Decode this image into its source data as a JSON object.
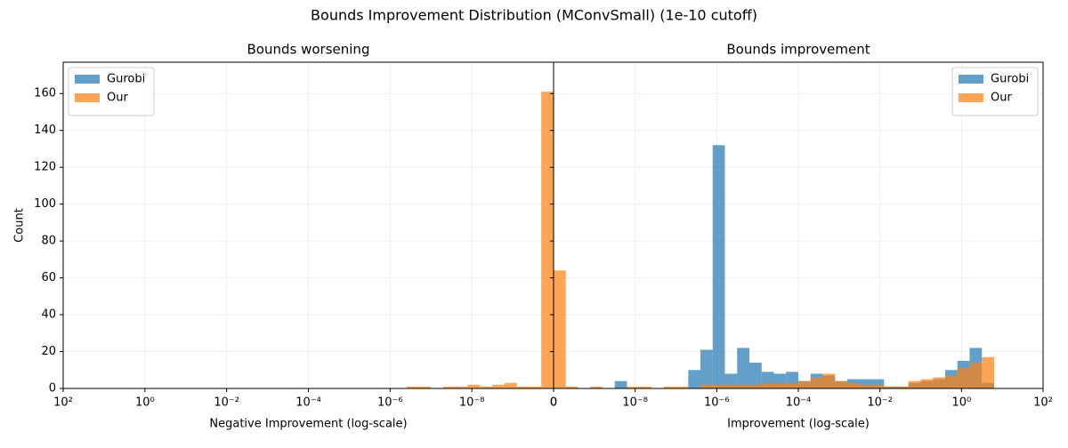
{
  "title": "Bounds Improvement Distribution (MConvSmall) (1e-10 cutoff)",
  "chart_data": [
    {
      "type": "histogram",
      "title": "Bounds worsening",
      "xlabel": "Negative Improvement (log-scale)",
      "ylabel": "Count",
      "xscale": "log",
      "grid": true,
      "legend": "upper left",
      "xlim": [
        100,
        1e-10
      ],
      "ylim": [
        0,
        177
      ],
      "xticks": [
        {
          "value": 100,
          "label": "10²"
        },
        {
          "value": 1,
          "label": "10⁰"
        },
        {
          "value": 0.01,
          "label": "10⁻²"
        },
        {
          "value": 0.0001,
          "label": "10⁻⁴"
        },
        {
          "value": 1e-06,
          "label": "10⁻⁶"
        },
        {
          "value": 1e-08,
          "label": "10⁻⁸"
        },
        {
          "value": 1e-10,
          "label": "0"
        }
      ],
      "yticks": [
        0,
        20,
        40,
        60,
        80,
        100,
        120,
        140,
        160
      ],
      "bins": [
        1e-10,
        2e-10,
        3.98e-10,
        7.94e-10,
        1.58e-09,
        3.16e-09,
        6.31e-09,
        1.26e-08,
        2.51e-08,
        5.01e-08,
        1e-07,
        2e-07,
        3.98e-07,
        7.94e-07,
        1.58e-06,
        3.16e-06,
        6.31e-06,
        1.26e-05,
        2.51e-05,
        5.01e-05,
        0.0001,
        0.0002,
        0.000398,
        0.000794,
        0.00158,
        0.00316,
        0.00631,
        0.0126,
        0.0251,
        0.0501,
        0.1,
        0.2,
        0.398,
        0.794,
        1.58,
        3.16,
        6.31,
        12.6,
        25.1,
        50.1,
        100
      ],
      "series": [
        {
          "name": "Gurobi",
          "color": "#1f77b4",
          "values": [
            0,
            0,
            0,
            0,
            0,
            0,
            0,
            0,
            0,
            0,
            0,
            0,
            0,
            0,
            0,
            0,
            0,
            0,
            0,
            0,
            0,
            0,
            0,
            0,
            0,
            0,
            0,
            0,
            0,
            0,
            0,
            0,
            0,
            0,
            0,
            0,
            0,
            0,
            0,
            0
          ]
        },
        {
          "name": "Our",
          "color": "#ff7f0e",
          "values": [
            161,
            1,
            1,
            3,
            2,
            1,
            2,
            1,
            1,
            0,
            1,
            1,
            0,
            0,
            0,
            0,
            0,
            0,
            0,
            0,
            0,
            0,
            0,
            0,
            0,
            0,
            0,
            0,
            0,
            0,
            0,
            0,
            0,
            0,
            0,
            0,
            0,
            0,
            0,
            0
          ]
        }
      ]
    },
    {
      "type": "histogram",
      "title": "Bounds improvement",
      "xlabel": "Improvement (log-scale)",
      "xscale": "log",
      "grid": true,
      "legend": "upper right",
      "xlim": [
        1e-10,
        100
      ],
      "ylim": [
        0,
        177
      ],
      "xticks": [
        {
          "value": 1e-10,
          "label": "0"
        },
        {
          "value": 1e-08,
          "label": "10⁻⁸"
        },
        {
          "value": 1e-06,
          "label": "10⁻⁶"
        },
        {
          "value": 0.0001,
          "label": "10⁻⁴"
        },
        {
          "value": 0.01,
          "label": "10⁻²"
        },
        {
          "value": 1,
          "label": "10⁰"
        },
        {
          "value": 100,
          "label": "10²"
        }
      ],
      "bins": [
        1e-10,
        2e-10,
        3.98e-10,
        7.94e-10,
        1.58e-09,
        3.16e-09,
        6.31e-09,
        1.26e-08,
        2.51e-08,
        5.01e-08,
        1e-07,
        2e-07,
        3.98e-07,
        7.94e-07,
        1.58e-06,
        3.16e-06,
        6.31e-06,
        1.26e-05,
        2.51e-05,
        5.01e-05,
        0.0001,
        0.0002,
        0.000398,
        0.000794,
        0.00158,
        0.00316,
        0.00631,
        0.0126,
        0.0251,
        0.0501,
        0.1,
        0.2,
        0.398,
        0.794,
        1.58,
        3.16,
        6.31,
        12.6,
        25.1,
        50.1,
        100
      ],
      "series": [
        {
          "name": "Gurobi",
          "color": "#1f77b4",
          "values": [
            0,
            0,
            0,
            0,
            0,
            4,
            0,
            0,
            0,
            0,
            0,
            10,
            21,
            132,
            8,
            22,
            14,
            9,
            8,
            9,
            4,
            8,
            7,
            4,
            5,
            5,
            5,
            1,
            1,
            3,
            4,
            5,
            10,
            15,
            22,
            3,
            0,
            0,
            0,
            0
          ]
        },
        {
          "name": "Our",
          "color": "#ff7f0e",
          "values": [
            64,
            1,
            0,
            1,
            0,
            0,
            1,
            1,
            0,
            1,
            1,
            0,
            2,
            2,
            2,
            2,
            2,
            3,
            3,
            3,
            4,
            6,
            8,
            4,
            3,
            2,
            2,
            1,
            1,
            4,
            5,
            6,
            7,
            11,
            14,
            17,
            0,
            0,
            0,
            0
          ]
        }
      ]
    }
  ]
}
